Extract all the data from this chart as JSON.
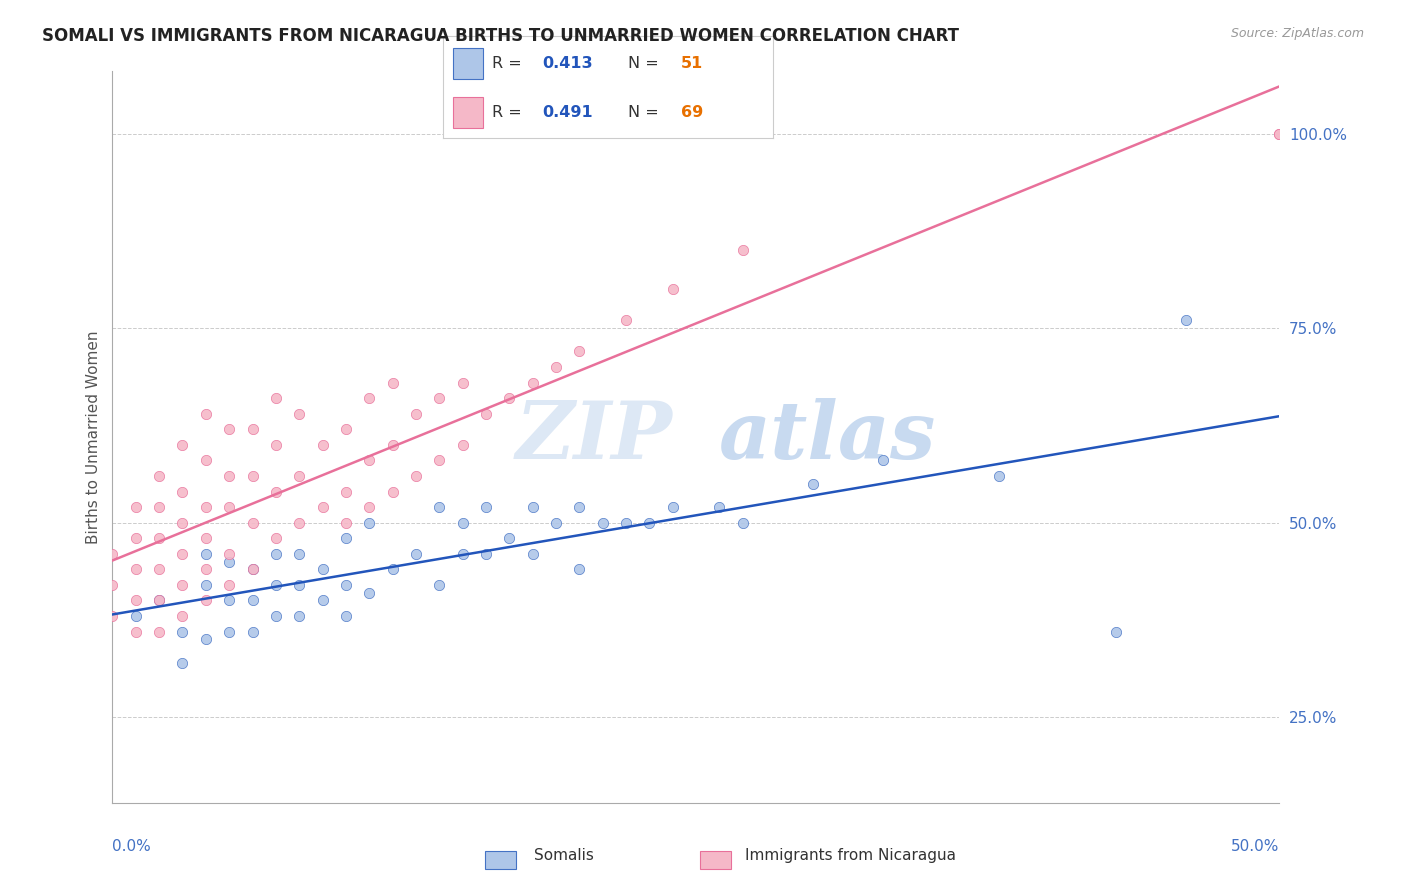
{
  "title": "SOMALI VS IMMIGRANTS FROM NICARAGUA BIRTHS TO UNMARRIED WOMEN CORRELATION CHART",
  "source": "Source: ZipAtlas.com",
  "ylabel": "Births to Unmarried Women",
  "ytick_vals": [
    0.25,
    0.5,
    0.75,
    1.0
  ],
  "ytick_labels": [
    "25.0%",
    "50.0%",
    "75.0%",
    "100.0%"
  ],
  "xlim": [
    0.0,
    0.5
  ],
  "ylim": [
    0.14,
    1.08
  ],
  "somali_R": "0.413",
  "somali_N": "51",
  "nicaragua_R": "0.491",
  "nicaragua_N": "69",
  "somali_color": "#aec6e8",
  "nicaragua_color": "#f5b8c8",
  "somali_edge_color": "#4472c4",
  "nicaragua_edge_color": "#e8709a",
  "somali_line_color": "#2255bb",
  "nicaragua_line_color": "#e8709a",
  "r_color": "#2255bb",
  "n_color": "#e87000",
  "watermark_zip_color": "#dde8f5",
  "watermark_atlas_color": "#c8daf0",
  "somali_x": [
    0.01,
    0.02,
    0.03,
    0.03,
    0.04,
    0.04,
    0.04,
    0.05,
    0.05,
    0.05,
    0.06,
    0.06,
    0.06,
    0.07,
    0.07,
    0.07,
    0.08,
    0.08,
    0.08,
    0.09,
    0.09,
    0.1,
    0.1,
    0.1,
    0.11,
    0.11,
    0.12,
    0.13,
    0.14,
    0.14,
    0.15,
    0.15,
    0.16,
    0.16,
    0.17,
    0.18,
    0.18,
    0.19,
    0.2,
    0.2,
    0.21,
    0.22,
    0.23,
    0.24,
    0.26,
    0.27,
    0.3,
    0.33,
    0.38,
    0.43,
    0.46
  ],
  "somali_y": [
    0.38,
    0.4,
    0.32,
    0.36,
    0.35,
    0.42,
    0.46,
    0.36,
    0.4,
    0.45,
    0.36,
    0.4,
    0.44,
    0.38,
    0.42,
    0.46,
    0.38,
    0.42,
    0.46,
    0.4,
    0.44,
    0.38,
    0.42,
    0.48,
    0.41,
    0.5,
    0.44,
    0.46,
    0.42,
    0.52,
    0.46,
    0.5,
    0.46,
    0.52,
    0.48,
    0.46,
    0.52,
    0.5,
    0.44,
    0.52,
    0.5,
    0.5,
    0.5,
    0.52,
    0.52,
    0.5,
    0.55,
    0.58,
    0.56,
    0.36,
    0.76
  ],
  "nicaragua_x": [
    0.0,
    0.0,
    0.0,
    0.01,
    0.01,
    0.01,
    0.01,
    0.01,
    0.02,
    0.02,
    0.02,
    0.02,
    0.02,
    0.02,
    0.03,
    0.03,
    0.03,
    0.03,
    0.03,
    0.03,
    0.04,
    0.04,
    0.04,
    0.04,
    0.04,
    0.04,
    0.05,
    0.05,
    0.05,
    0.05,
    0.05,
    0.06,
    0.06,
    0.06,
    0.06,
    0.07,
    0.07,
    0.07,
    0.07,
    0.08,
    0.08,
    0.08,
    0.09,
    0.09,
    0.1,
    0.1,
    0.1,
    0.11,
    0.11,
    0.11,
    0.12,
    0.12,
    0.12,
    0.13,
    0.13,
    0.14,
    0.14,
    0.15,
    0.15,
    0.16,
    0.17,
    0.18,
    0.19,
    0.2,
    0.22,
    0.24,
    0.27,
    0.5,
    0.5
  ],
  "nicaragua_y": [
    0.38,
    0.42,
    0.46,
    0.36,
    0.4,
    0.44,
    0.48,
    0.52,
    0.36,
    0.4,
    0.44,
    0.48,
    0.52,
    0.56,
    0.38,
    0.42,
    0.46,
    0.5,
    0.54,
    0.6,
    0.4,
    0.44,
    0.48,
    0.52,
    0.58,
    0.64,
    0.42,
    0.46,
    0.52,
    0.56,
    0.62,
    0.44,
    0.5,
    0.56,
    0.62,
    0.48,
    0.54,
    0.6,
    0.66,
    0.5,
    0.56,
    0.64,
    0.52,
    0.6,
    0.5,
    0.54,
    0.62,
    0.52,
    0.58,
    0.66,
    0.54,
    0.6,
    0.68,
    0.56,
    0.64,
    0.58,
    0.66,
    0.6,
    0.68,
    0.64,
    0.66,
    0.68,
    0.7,
    0.72,
    0.76,
    0.8,
    0.85,
    1.0,
    1.0
  ]
}
